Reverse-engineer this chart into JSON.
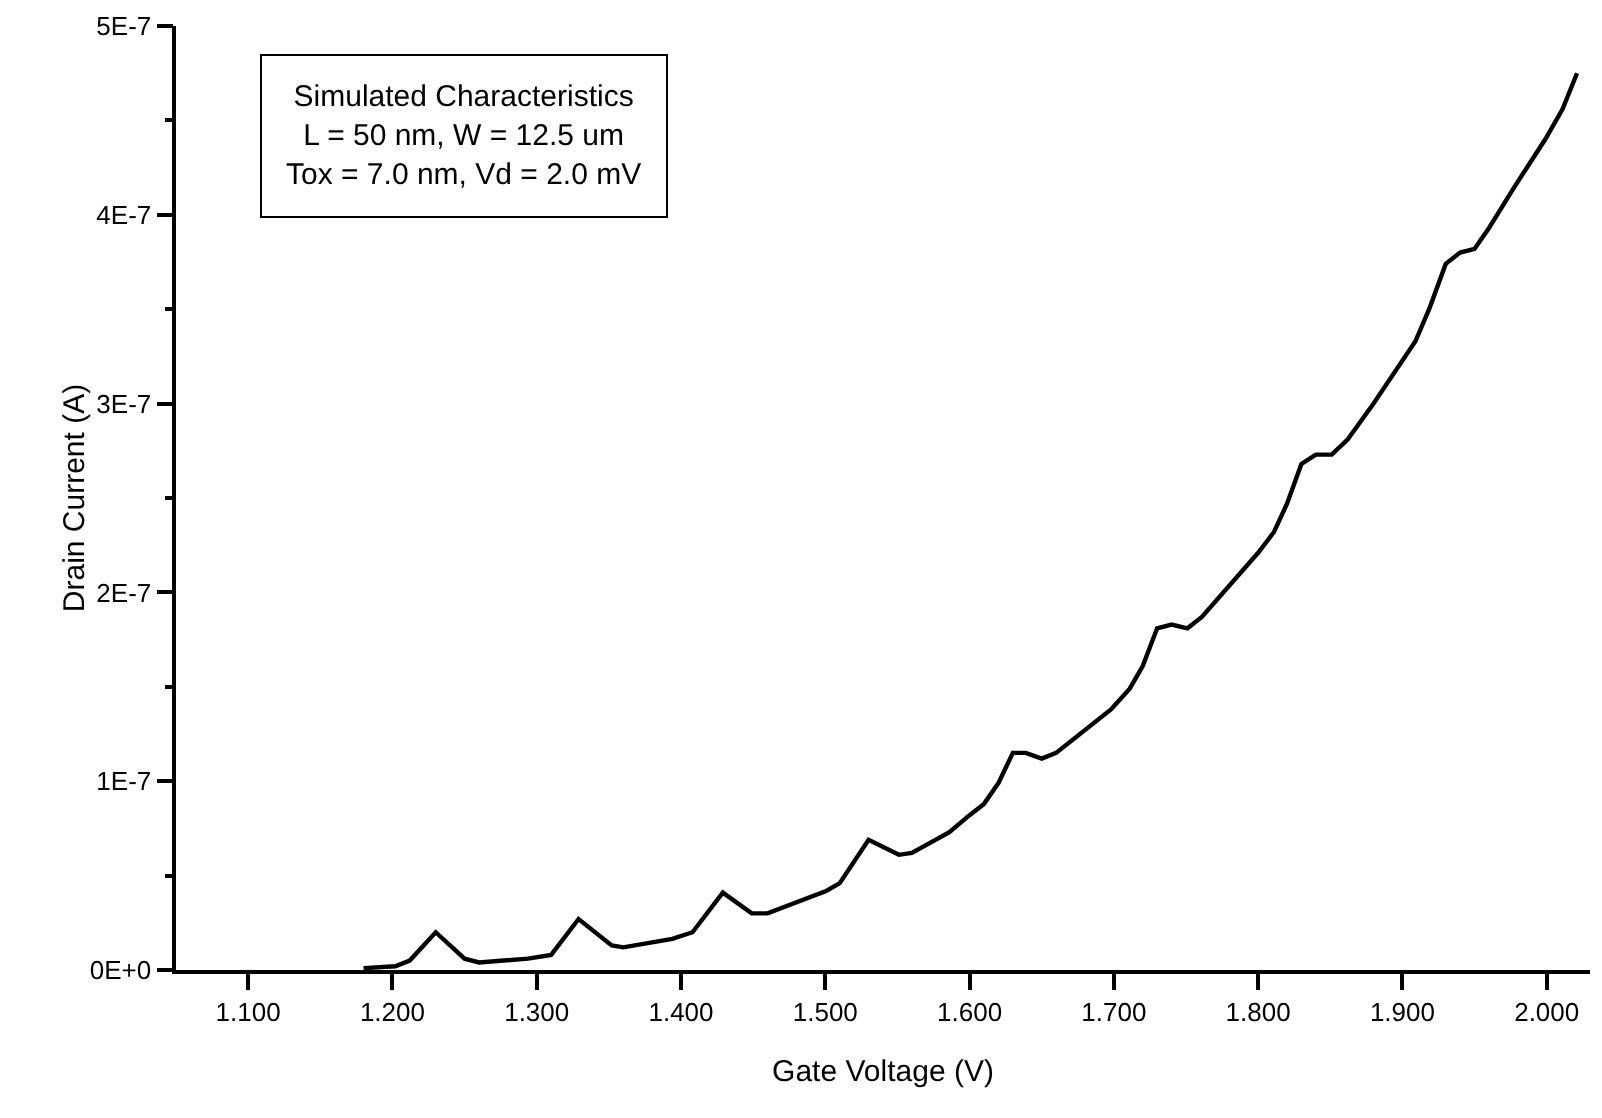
{
  "chart_data": {
    "type": "line",
    "xlabel": "Gate Voltage (V)",
    "ylabel": "Drain Current (A)",
    "annotations": [
      "Simulated Characteristics\nL = 50 nm, W = 12.5 um\nTox = 7.0 nm, Vd = 2.0 mV"
    ],
    "xlim": [
      1.05,
      2.03
    ],
    "xticks": [
      {
        "value": 1.1,
        "label": "1.100"
      },
      {
        "value": 1.2,
        "label": "1.200"
      },
      {
        "value": 1.3,
        "label": "1.300"
      },
      {
        "value": 1.4,
        "label": "1.400"
      },
      {
        "value": 1.5,
        "label": "1.500"
      },
      {
        "value": 1.6,
        "label": "1.600"
      },
      {
        "value": 1.7,
        "label": "1.700"
      },
      {
        "value": 1.8,
        "label": "1.800"
      },
      {
        "value": 1.9,
        "label": "1.900"
      },
      {
        "value": 2.0,
        "label": "2.000"
      }
    ],
    "ylim": [
      0,
      5e-07
    ],
    "yticks": [
      {
        "value": 0,
        "label": "0E+0"
      },
      {
        "value": 5e-08,
        "label": null
      },
      {
        "value": 1e-07,
        "label": "1E-7"
      },
      {
        "value": 1.5e-07,
        "label": null
      },
      {
        "value": 2e-07,
        "label": "2E-7"
      },
      {
        "value": 2.5e-07,
        "label": null
      },
      {
        "value": 3e-07,
        "label": "3E-7"
      },
      {
        "value": 3.5e-07,
        "label": null
      },
      {
        "value": 4e-07,
        "label": "4E-7"
      },
      {
        "value": 4.5e-07,
        "label": null
      },
      {
        "value": 5e-07,
        "label": "5E-7"
      }
    ],
    "grid": false,
    "marker": "none",
    "line_style": "solid",
    "series": [
      {
        "color": "#000000",
        "x": [
          1.18,
          1.202,
          1.212,
          1.23,
          1.25,
          1.26,
          1.294,
          1.31,
          1.329,
          1.352,
          1.36,
          1.394,
          1.408,
          1.429,
          1.449,
          1.46,
          1.501,
          1.51,
          1.53,
          1.551,
          1.56,
          1.586,
          1.6,
          1.61,
          1.62,
          1.63,
          1.639,
          1.65,
          1.66,
          1.698,
          1.711,
          1.72,
          1.73,
          1.74,
          1.751,
          1.761,
          1.8,
          1.811,
          1.82,
          1.83,
          1.84,
          1.851,
          1.862,
          1.88,
          1.909,
          1.919,
          1.93,
          1.94,
          1.95,
          1.96,
          1.977,
          1.999,
          2.011,
          2.021
        ],
        "values": [
          1e-09,
          2e-09,
          5e-09,
          2e-08,
          6e-09,
          4e-09,
          6e-09,
          8e-09,
          2.7e-08,
          1.3e-08,
          1.2e-08,
          1.65e-08,
          2e-08,
          4.1e-08,
          3e-08,
          3e-08,
          4.2e-08,
          4.6e-08,
          6.9e-08,
          6.1e-08,
          6.2e-08,
          7.3e-08,
          8.2e-08,
          8.8e-08,
          9.9e-08,
          1.15e-07,
          1.15e-07,
          1.12e-07,
          1.15e-07,
          1.38e-07,
          1.49e-07,
          1.61e-07,
          1.81e-07,
          1.83e-07,
          1.81e-07,
          1.87e-07,
          2.21e-07,
          2.32e-07,
          2.47e-07,
          2.68e-07,
          2.73e-07,
          2.73e-07,
          2.81e-07,
          3e-07,
          3.33e-07,
          3.51e-07,
          3.74e-07,
          3.8e-07,
          3.82e-07,
          3.93e-07,
          4.14e-07,
          4.4e-07,
          4.56e-07,
          4.75e-07
        ]
      }
    ]
  }
}
